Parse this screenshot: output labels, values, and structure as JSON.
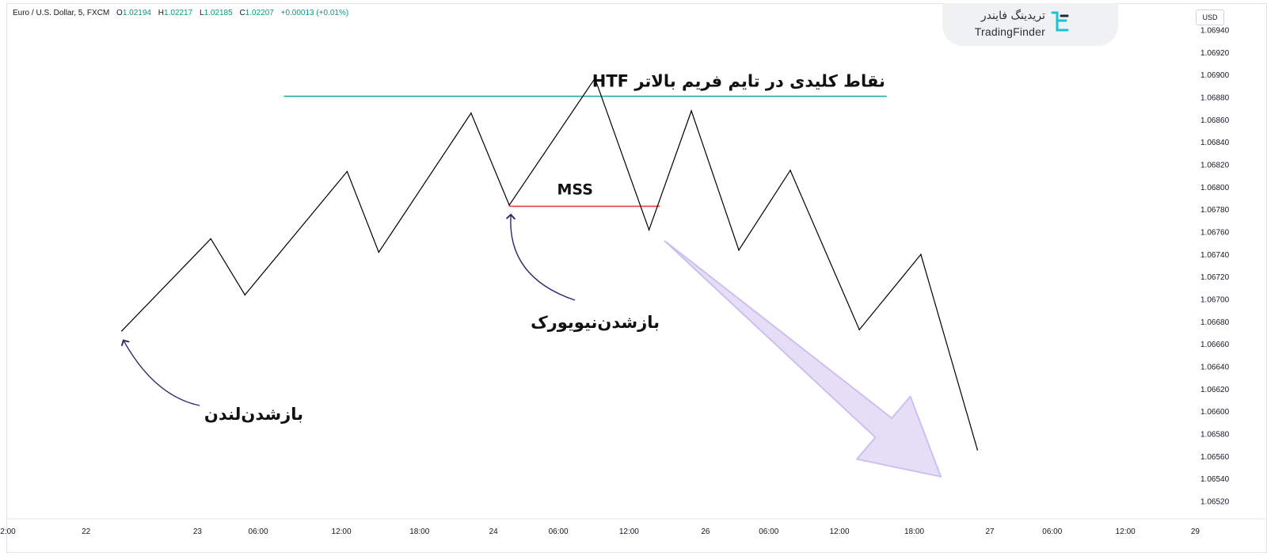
{
  "header": {
    "symbol": "Euro / U.S. Dollar, 5, FXCM",
    "ohlc": [
      {
        "label": "O",
        "value": "1.02194"
      },
      {
        "label": "H",
        "value": "1.02217"
      },
      {
        "label": "L",
        "value": "1.02185"
      },
      {
        "label": "C",
        "value": "1.02207"
      }
    ],
    "change": "+0.00013 (+0.01%)"
  },
  "logo": {
    "persian": "تریدینگ فایندر",
    "english": "TradingFinder"
  },
  "currency": "USD",
  "colors": {
    "price_line": "#000000",
    "htf_line": "#26a6b4",
    "mss_line": "#e8413d",
    "arrow_fill": "#e6def6",
    "arrow_stroke": "#cdbfee",
    "annotation_arrow": "#2e2a6b",
    "up_value": "#089981",
    "axis_text": "#131722"
  },
  "chart_data": {
    "type": "line",
    "ylim": [
      1.06505,
      1.06955
    ],
    "y_ticks": [
      1.0694,
      1.0692,
      1.069,
      1.0688,
      1.0686,
      1.0684,
      1.0682,
      1.068,
      1.0678,
      1.0676,
      1.0674,
      1.0672,
      1.067,
      1.0668,
      1.0666,
      1.0664,
      1.0662,
      1.066,
      1.0658,
      1.0656,
      1.0654,
      1.0652
    ],
    "y_tick_labels": [
      "1.06940",
      "1.06920",
      "1.06900",
      "1.06880",
      "1.06860",
      "1.06840",
      "1.06820",
      "1.06800",
      "1.06780",
      "1.06760",
      "1.06740",
      "1.06720",
      "1.06700",
      "1.06680",
      "1.06660",
      "1.06640",
      "1.06620",
      "1.06600",
      "1.06580",
      "1.06560",
      "1.06540",
      "1.06520"
    ],
    "x_ticks": [
      {
        "label": "2:00",
        "t": 0
      },
      {
        "label": "22",
        "t": 0.094
      },
      {
        "label": "23",
        "t": 0.228
      },
      {
        "label": "06:00",
        "t": 0.301
      },
      {
        "label": "12:00",
        "t": 0.401
      },
      {
        "label": "18:00",
        "t": 0.495
      },
      {
        "label": "24",
        "t": 0.584
      },
      {
        "label": "06:00",
        "t": 0.662
      },
      {
        "label": "12:00",
        "t": 0.747
      },
      {
        "label": "26",
        "t": 0.839
      },
      {
        "label": "06:00",
        "t": 0.915
      },
      {
        "label": "12:00",
        "t": 1.0
      },
      {
        "label": "18:00",
        "t": 1.09
      },
      {
        "label": "27",
        "t": 1.181
      },
      {
        "label": "06:00",
        "t": 1.256
      },
      {
        "label": "12:00",
        "t": 1.344
      },
      {
        "label": "29",
        "t": 1.428
      }
    ],
    "series": [
      {
        "points": [
          [
            0.137,
            1.06672
          ],
          [
            0.244,
            1.06754
          ],
          [
            0.285,
            1.06704
          ],
          [
            0.408,
            1.06814
          ],
          [
            0.446,
            1.06742
          ],
          [
            0.557,
            1.06866
          ],
          [
            0.603,
            1.06784
          ],
          [
            0.706,
            1.06897
          ],
          [
            0.771,
            1.06762
          ],
          [
            0.822,
            1.06868
          ],
          [
            0.879,
            1.06744
          ],
          [
            0.941,
            1.06815
          ],
          [
            1.024,
            1.06673
          ],
          [
            1.098,
            1.0674
          ],
          [
            1.166,
            1.06566
          ]
        ]
      }
    ],
    "levels": [
      {
        "label": "HTF نقاط کلیدی در تایم فریم بالاتر",
        "y": 1.06881,
        "t_start": 0.332,
        "t_end": 1.057
      },
      {
        "label": "MSS",
        "y": 1.06783,
        "t_start": 0.603,
        "t_end": 0.784
      }
    ],
    "annotations": [
      {
        "text": "بازشدن‌لندن",
        "points_to": [
          0.137,
          1.06672
        ]
      },
      {
        "text": "بازشدن‌نیویورک",
        "points_to": [
          0.603,
          1.06784
        ]
      }
    ],
    "projection": {
      "from": [
        0.79,
        1.06752
      ],
      "to": [
        1.122,
        1.06542
      ]
    }
  }
}
